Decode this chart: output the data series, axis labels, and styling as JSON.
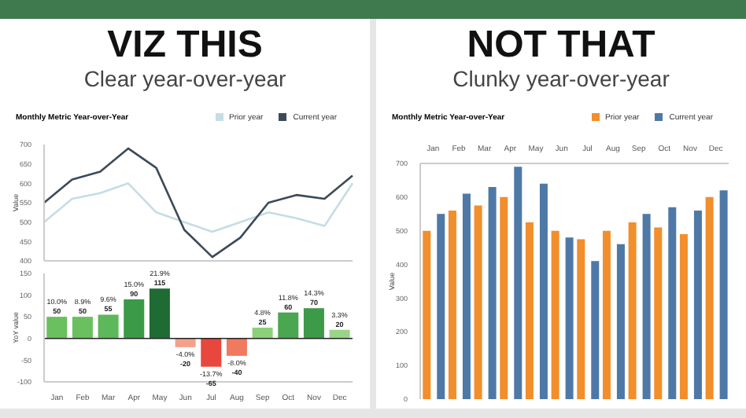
{
  "chart_data": [
    {
      "type": "line",
      "title": "Monthly Metric Year-over-Year",
      "annotations": [
        "VIZ THIS",
        "Clear year-over-year"
      ],
      "categories": [
        null,
        null,
        null,
        null,
        null,
        null,
        null,
        null,
        null,
        null,
        null,
        null
      ],
      "series": [
        {
          "name": "Prior year",
          "color": "#c5dde4",
          "values": [
            500,
            560,
            575,
            600,
            525,
            500,
            475,
            500,
            525,
            510,
            490,
            600
          ]
        },
        {
          "name": "Current year",
          "color": "#3c4a58",
          "values": [
            550,
            610,
            630,
            690,
            640,
            480,
            410,
            460,
            550,
            570,
            560,
            620
          ]
        }
      ],
      "ylabel": "Value",
      "ylim": [
        400,
        700
      ],
      "yticks": [
        400,
        450,
        500,
        550,
        600,
        650,
        700
      ],
      "tick_labels": "y",
      "legend": "top right"
    },
    {
      "type": "bar",
      "categories": [
        "Jan",
        "Feb",
        "Mar",
        "Apr",
        "May",
        "Jun",
        "Jul",
        "Aug",
        "Sep",
        "Oct",
        "Nov",
        "Dec"
      ],
      "values": [
        50,
        50,
        55,
        90,
        115,
        -20,
        -65,
        -40,
        25,
        60,
        70,
        20
      ],
      "colors": [
        "#6abf5e",
        "#6abf5e",
        "#5cb85a",
        "#3a9a47",
        "#1e6b34",
        "#f4a08a",
        "#e8473d",
        "#f07a60",
        "#8dd07a",
        "#4aa650",
        "#3d9a48",
        "#9ad488"
      ],
      "value_labels": [
        "10.0% 50",
        "8.9% 50",
        "9.6% 55",
        "15.0% 90",
        "21.9% 115",
        "-4.0% -20",
        "-13.7% -65",
        "-8.0% -40",
        "4.8% 25",
        "11.8% 60",
        "14.3% 70",
        "3.3% 20"
      ],
      "ylabel": "YoY value",
      "ylim": [
        -100,
        150
      ],
      "yticks": [
        -100,
        -50,
        0,
        50,
        100,
        150
      ],
      "ref_lines": [
        {
          "axis": "y",
          "value": 0,
          "color": "#222222"
        }
      ]
    },
    {
      "type": "bar",
      "title": "Monthly Metric Year-over-Year",
      "annotations": [
        "NOT THAT",
        "Clunky year-over-year"
      ],
      "categories": [
        "Jan",
        "Feb",
        "Mar",
        "Apr",
        "May",
        "Jun",
        "Jul",
        "Aug",
        "Sep",
        "Oct",
        "Nov",
        "Dec"
      ],
      "series": [
        {
          "name": "Prior year",
          "color": "#f28e2b",
          "values": [
            500,
            560,
            575,
            600,
            525,
            500,
            475,
            500,
            525,
            510,
            490,
            600
          ]
        },
        {
          "name": "Current year",
          "color": "#4e79a7",
          "values": [
            550,
            610,
            630,
            690,
            640,
            480,
            410,
            460,
            550,
            570,
            560,
            620
          ]
        }
      ],
      "ylabel": "Value",
      "ylim": [
        0,
        700
      ],
      "yticks": [
        0,
        100,
        200,
        300,
        400,
        500,
        600,
        700
      ],
      "legend": "top"
    }
  ]
}
